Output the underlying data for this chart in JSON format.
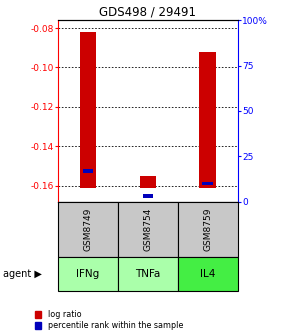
{
  "title": "GDS498 / 29491",
  "samples": [
    "GSM8749",
    "GSM8754",
    "GSM8759"
  ],
  "agents": [
    "IFNg",
    "TNFa",
    "IL4"
  ],
  "log_ratios": [
    -0.082,
    -0.155,
    -0.092
  ],
  "log_ratio_base": -0.161,
  "percentile_values": [
    17,
    3,
    10
  ],
  "ylim": [
    -0.168,
    -0.076
  ],
  "yticks_left": [
    -0.16,
    -0.14,
    -0.12,
    -0.1,
    -0.08
  ],
  "yticks_right": [
    0,
    25,
    50,
    75,
    100
  ],
  "yticks_right_labels": [
    "0",
    "25",
    "50",
    "75",
    "100%"
  ],
  "bar_color_red": "#cc0000",
  "bar_color_blue": "#0000bb",
  "sample_box_color": "#c8c8c8",
  "agent_colors": [
    "#aaffaa",
    "#aaffaa",
    "#44ee44"
  ],
  "legend_items": [
    "log ratio",
    "percentile rank within the sample"
  ],
  "bar_width": 0.28,
  "blue_bar_width": 0.18
}
